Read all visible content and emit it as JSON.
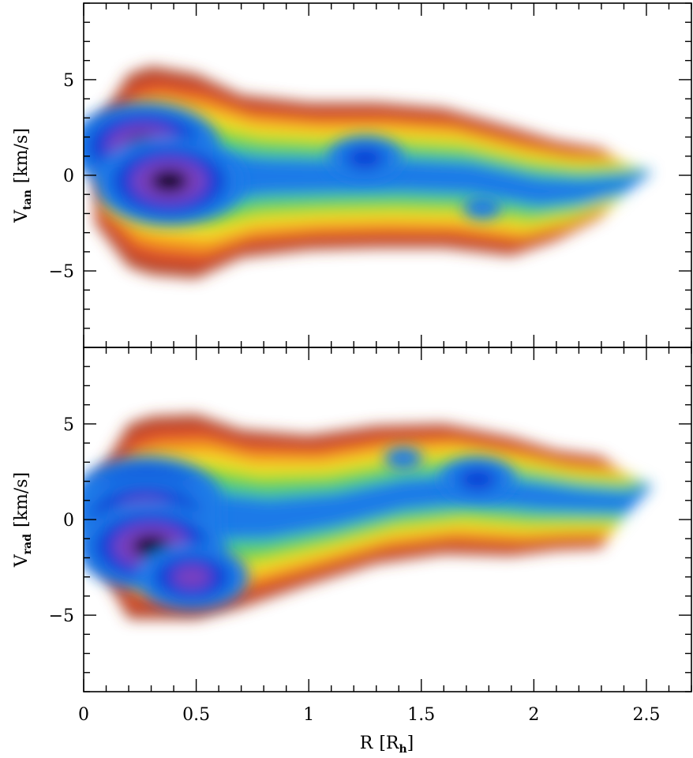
{
  "chart_data": [
    {
      "type": "heatmap",
      "panel": "top",
      "ylabel": "V",
      "ylabel_sub": "tan",
      "ylabel_unit": "[km/s]",
      "xlim": [
        0,
        2.7
      ],
      "ylim": [
        -9,
        9
      ],
      "yticks": [
        -5,
        0,
        5
      ],
      "yticklabels": [
        "−5",
        "0",
        "5"
      ],
      "color_scale": [
        "#b34a2e",
        "#e1502a",
        "#f7a21e",
        "#f0e32e",
        "#7dd62e",
        "#42c98b",
        "#1f7ae8",
        "#0a3fd6",
        "#7a3fbf",
        "#000000"
      ],
      "outer_extent": {
        "r": [
          0.05,
          0.2,
          0.3,
          0.5,
          0.7,
          1.0,
          1.3,
          1.6,
          1.9,
          2.1,
          2.3,
          2.4
        ],
        "v_upper": [
          2.5,
          5.3,
          5.7,
          5.3,
          4.2,
          3.8,
          3.8,
          3.5,
          2.5,
          1.8,
          1.4,
          0.6
        ],
        "v_lower": [
          -2.5,
          -4.8,
          -5.2,
          -5.4,
          -4.3,
          -3.9,
          -3.8,
          -3.8,
          -4.2,
          -3.4,
          -2.2,
          -0.2
        ]
      },
      "density_peaks": [
        {
          "r": 0.27,
          "v": 1.5,
          "level": 9
        },
        {
          "r": 0.38,
          "v": -0.3,
          "level": 9
        },
        {
          "r": 1.25,
          "v": 0.9,
          "level": 7
        },
        {
          "r": 1.77,
          "v": -1.7,
          "level": 6
        }
      ]
    },
    {
      "type": "heatmap",
      "panel": "bottom",
      "ylabel": "V",
      "ylabel_sub": "rad",
      "ylabel_unit": "[km/s]",
      "xlabel": "R",
      "xlabel_unit_sym": "R",
      "xlabel_unit_sub": "h",
      "xlim": [
        0,
        2.7
      ],
      "ylim": [
        -9,
        9
      ],
      "xticks": [
        0,
        0.5,
        1,
        1.5,
        2,
        2.5
      ],
      "xticklabels": [
        "0",
        "0.5",
        "1",
        "1.5",
        "2",
        "2.5"
      ],
      "yticks": [
        -5,
        0,
        5
      ],
      "yticklabels": [
        "−5",
        "0",
        "5"
      ],
      "outer_extent": {
        "r": [
          0.05,
          0.2,
          0.3,
          0.5,
          0.7,
          1.0,
          1.3,
          1.6,
          1.9,
          2.1,
          2.3,
          2.4
        ],
        "v_upper": [
          2.0,
          5.0,
          5.4,
          5.5,
          4.7,
          4.4,
          4.9,
          5.0,
          4.3,
          3.6,
          3.3,
          2.4
        ],
        "v_lower": [
          -2.0,
          -5.2,
          -5.2,
          -5.2,
          -4.6,
          -3.4,
          -2.3,
          -1.8,
          -1.9,
          -1.6,
          -1.5,
          1.2
        ]
      },
      "density_peaks": [
        {
          "r": 0.28,
          "v": 1.0,
          "level": 9
        },
        {
          "r": 0.28,
          "v": 0.0,
          "level": 9
        },
        {
          "r": 0.3,
          "v": -1.4,
          "level": 9
        },
        {
          "r": 0.48,
          "v": -3.0,
          "level": 8
        },
        {
          "r": 1.75,
          "v": 2.1,
          "level": 7
        },
        {
          "r": 1.42,
          "v": 3.2,
          "level": 6
        }
      ]
    }
  ]
}
